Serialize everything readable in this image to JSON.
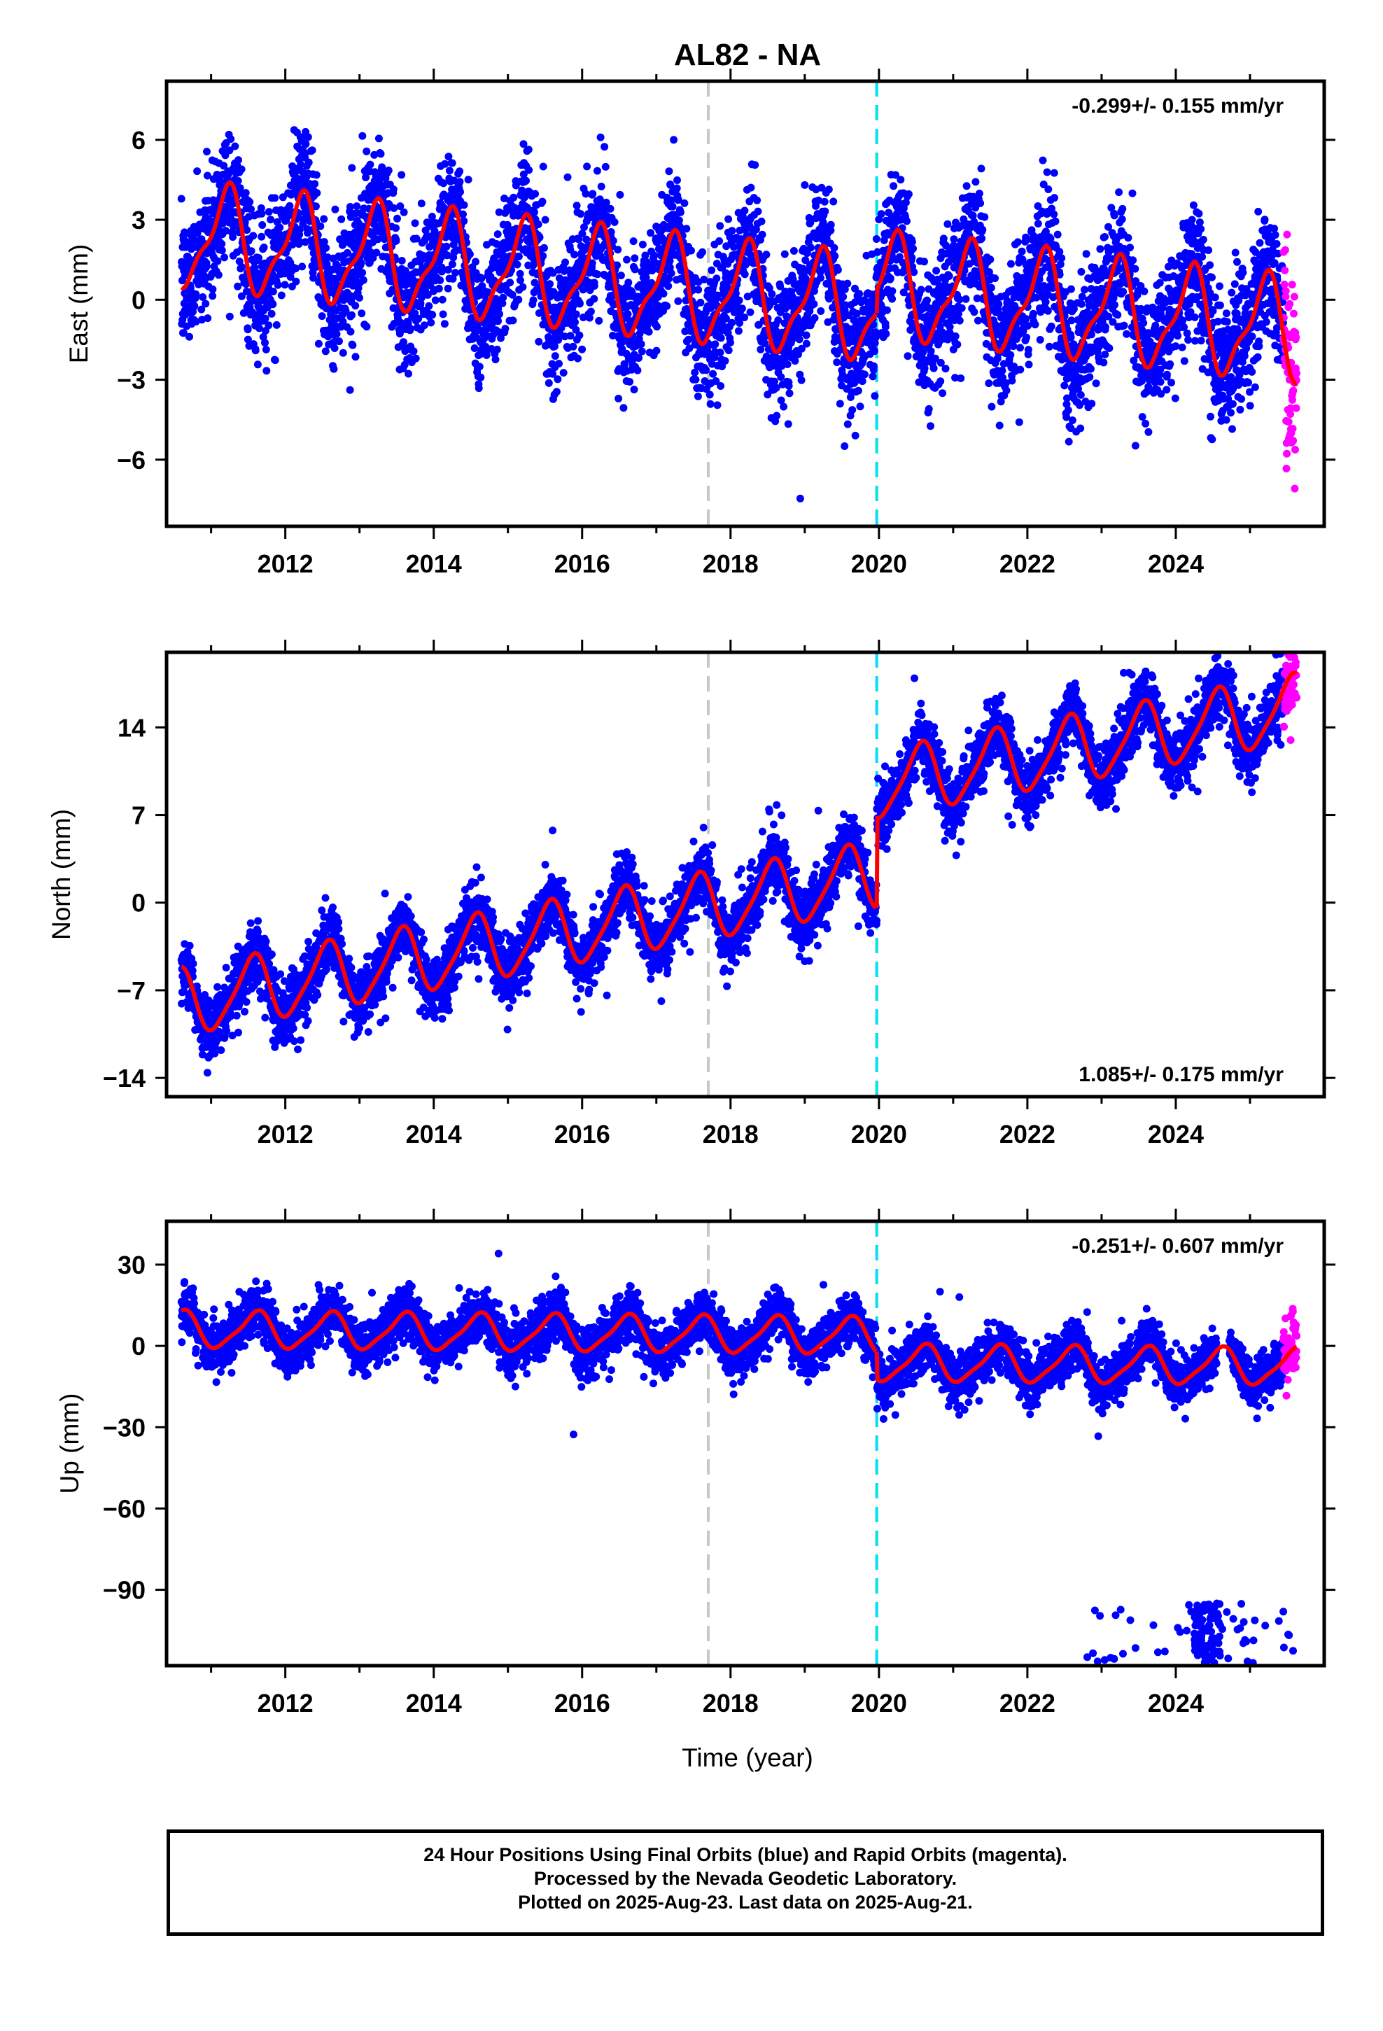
{
  "title": "AL82 - NA",
  "xlabel": "Time (year)",
  "x_ticks": [
    "2012",
    "2014",
    "2016",
    "2018",
    "2020",
    "2022",
    "2024"
  ],
  "colors": {
    "final": "#0000ff",
    "rapid": "#ff00ff",
    "model": "#ff0000",
    "event1": "#c8c8c8",
    "event2": "#00e0ee"
  },
  "footer": {
    "line1": "24 Hour Positions Using Final Orbits (blue) and Rapid Orbits (magenta).",
    "line2": "Processed by the Nevada Geodetic Laboratory.",
    "line3": "Plotted on 2025-Aug-23. Last data on 2025-Aug-21."
  },
  "chart_data": [
    {
      "type": "scatter",
      "ylabel": "East (mm)",
      "xlim": [
        2010.4,
        2026.0
      ],
      "ylim": [
        -8.5,
        8.2
      ],
      "y_ticks": [
        "6",
        "3",
        "0",
        "−3",
        "−6"
      ],
      "y_tick_values": [
        6,
        3,
        0,
        -3,
        -6
      ],
      "rate": "-0.299+/- 0.155 mm/yr",
      "rate_position": "top-right",
      "event_lines": [
        2017.7,
        2019.97
      ],
      "model": {
        "trend": -0.299,
        "offset_at_2010": 2.4,
        "annual_amp": 1.8,
        "annual_phase": 0.2,
        "semi_amp": 0.6,
        "step_2020": 0.9,
        "noise_sd": 1.2
      },
      "series": [
        {
          "name": "Final Orbits (blue)",
          "x_range": [
            2010.6,
            2025.45
          ]
        },
        {
          "name": "Rapid Orbits (magenta)",
          "x_range": [
            2025.45,
            2025.63
          ]
        }
      ]
    },
    {
      "type": "scatter",
      "ylabel": "North (mm)",
      "xlim": [
        2010.4,
        2026.0
      ],
      "ylim": [
        -15.5,
        20.0
      ],
      "y_ticks": [
        "14",
        "7",
        "0",
        "−7",
        "−14"
      ],
      "y_tick_values": [
        14,
        7,
        0,
        -7,
        -14
      ],
      "rate": "1.085+/- 0.175 mm/yr",
      "rate_position": "bottom-right",
      "event_lines": [
        2017.7,
        2019.97
      ],
      "model": {
        "trend": 1.085,
        "offset_at_2010": -8.0,
        "annual_amp": 2.6,
        "annual_phase": 0.55,
        "semi_amp": 0.5,
        "step_2020": 7.2,
        "noise_sd": 1.3
      },
      "series": [
        {
          "name": "Final Orbits (blue)",
          "x_range": [
            2010.6,
            2025.45
          ]
        },
        {
          "name": "Rapid Orbits (magenta)",
          "x_range": [
            2025.45,
            2025.63
          ]
        }
      ]
    },
    {
      "type": "scatter",
      "ylabel": "Up (mm)",
      "xlim": [
        2010.4,
        2026.0
      ],
      "ylim": [
        -118,
        46
      ],
      "y_ticks": [
        "30",
        "0",
        "−30",
        "−60",
        "−90"
      ],
      "y_tick_values": [
        30,
        0,
        -30,
        -60,
        -90
      ],
      "rate": "-0.251+/- 0.607 mm/yr",
      "rate_position": "top-right",
      "event_lines": [
        2017.7,
        2019.97
      ],
      "model": {
        "trend": -0.251,
        "offset_at_2010": 6.0,
        "annual_amp": 6.5,
        "annual_phase": 0.6,
        "semi_amp": 1.5,
        "step_2020": -10.0,
        "noise_sd": 4.5
      },
      "outlier_cluster": {
        "x_range": [
          2022.8,
          2025.6
        ],
        "y_range": [
          -117,
          -95
        ]
      },
      "series": [
        {
          "name": "Final Orbits (blue)",
          "x_range": [
            2010.6,
            2025.45
          ]
        },
        {
          "name": "Rapid Orbits (magenta)",
          "x_range": [
            2025.45,
            2025.63
          ]
        }
      ]
    }
  ]
}
